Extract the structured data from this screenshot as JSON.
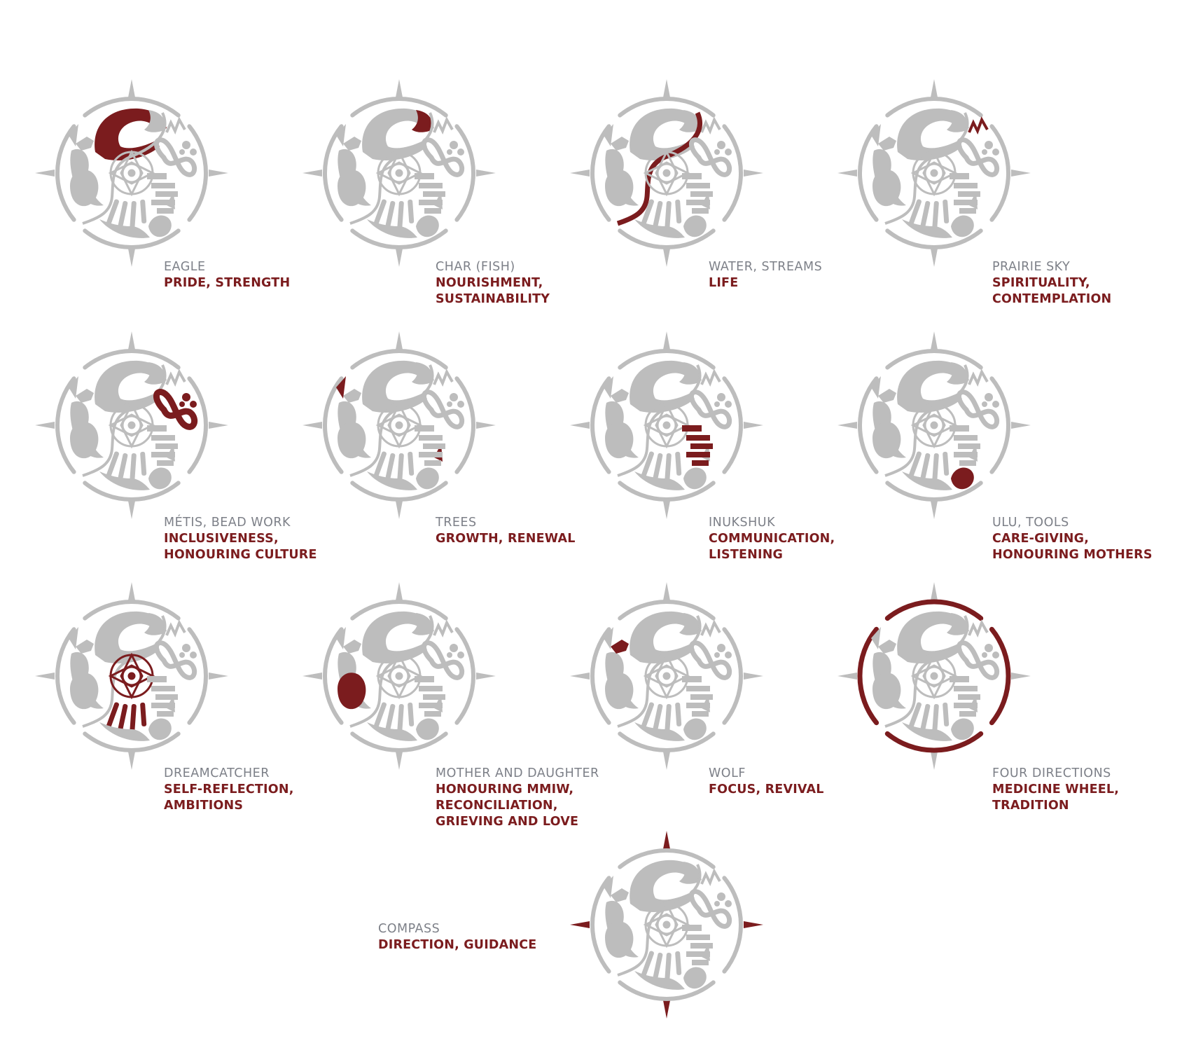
{
  "colors": {
    "accent": "#7b1c1e",
    "symbol_grey": "#bdbdbd",
    "label_grey": "#7d8088"
  },
  "emblems": [
    {
      "icon": "eagle-icon",
      "highlight": "eagle",
      "name": "EAGLE",
      "meaning": [
        "PRIDE, STRENGTH"
      ]
    },
    {
      "icon": "fish-icon",
      "highlight": "fish",
      "name": "CHAR (FISH)",
      "meaning": [
        "NOURISHMENT,",
        "SUSTAINABILITY"
      ]
    },
    {
      "icon": "water-icon",
      "highlight": "water",
      "name": "WATER, STREAMS",
      "meaning": [
        "LIFE"
      ]
    },
    {
      "icon": "prairie-sky-icon",
      "highlight": "sky",
      "name": "PRAIRIE SKY",
      "meaning": [
        "SPIRITUALITY,",
        "CONTEMPLATION"
      ]
    },
    {
      "icon": "infinity-bead-icon",
      "highlight": "metis",
      "name": "MÉTIS, BEAD WORK",
      "meaning": [
        "INCLUSIVENESS,",
        "HONOURING CULTURE"
      ]
    },
    {
      "icon": "trees-icon",
      "highlight": "trees",
      "name": "TREES",
      "meaning": [
        "GROWTH, RENEWAL"
      ]
    },
    {
      "icon": "inukshuk-icon",
      "highlight": "inukshuk",
      "name": "INUKSHUK",
      "meaning": [
        "COMMUNICATION,",
        "LISTENING"
      ]
    },
    {
      "icon": "ulu-icon",
      "highlight": "ulu",
      "name": "ULU, TOOLS",
      "meaning": [
        "CARE-GIVING,",
        "HONOURING MOTHERS"
      ]
    },
    {
      "icon": "dreamcatcher-icon",
      "highlight": "dreamcatcher",
      "name": "DREAMCATCHER",
      "meaning": [
        "SELF-REFLECTION,",
        "AMBITIONS"
      ]
    },
    {
      "icon": "mother-daughter-icon",
      "highlight": "mother",
      "name": "MOTHER AND DAUGHTER",
      "meaning": [
        "HONOURING MMIW,",
        "RECONCILIATION,",
        "GRIEVING AND LOVE"
      ]
    },
    {
      "icon": "wolf-icon",
      "highlight": "wolf",
      "name": "WOLF",
      "meaning": [
        "FOCUS, REVIVAL"
      ]
    },
    {
      "icon": "four-directions-icon",
      "highlight": "directions",
      "name": "FOUR DIRECTIONS",
      "meaning": [
        "MEDICINE WHEEL,",
        "TRADITION"
      ]
    },
    {
      "icon": "compass-icon",
      "highlight": "compass",
      "name": "COMPASS",
      "meaning": [
        "DIRECTION, GUIDANCE"
      ]
    }
  ]
}
